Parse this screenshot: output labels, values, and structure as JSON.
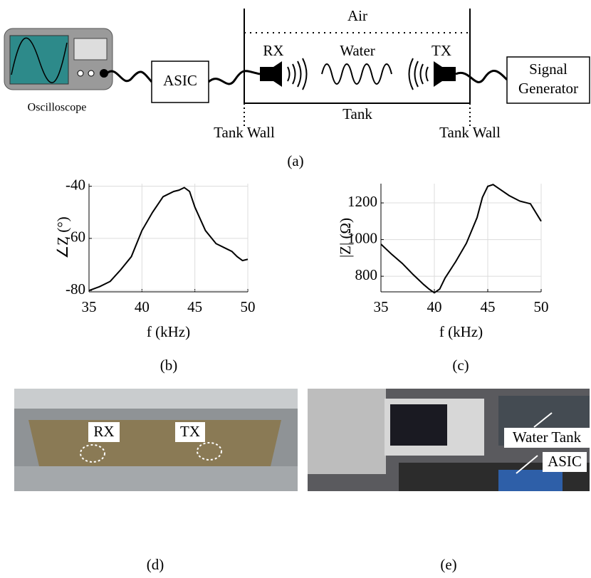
{
  "diagram": {
    "oscilloscope": "Oscilloscope",
    "asic": "ASIC",
    "air": "Air",
    "rx": "RX",
    "water": "Water",
    "tx": "TX",
    "tank": "Tank",
    "tank_wall_left": "Tank Wall",
    "tank_wall_right": "Tank Wall",
    "signal_generator": [
      "Signal",
      "Generator"
    ]
  },
  "chart_data": [
    {
      "type": "line",
      "ylabel": "∠Z (°)",
      "xlabel": "f (kHz)",
      "color": "#000000",
      "grid": true,
      "x": [
        35,
        36,
        37,
        38,
        39,
        40,
        41,
        42,
        43,
        43.5,
        44,
        44.5,
        45,
        46,
        47,
        48,
        48.5,
        49,
        49.5,
        50
      ],
      "values": [
        -80,
        -78.5,
        -76.5,
        -72,
        -67,
        -57,
        -50,
        -44,
        -42,
        -41.5,
        -40.5,
        -42,
        -48,
        -57,
        -62,
        -64,
        -65,
        -67,
        -68.5,
        -68
      ],
      "xlim": [
        35,
        50
      ],
      "xticks": [
        35,
        40,
        45,
        50
      ],
      "ylim": [
        -80.5,
        -39
      ],
      "yticks": [
        -80,
        -60,
        -40
      ]
    },
    {
      "type": "line",
      "ylabel": "|Z| (Ω)",
      "xlabel": "f (kHz)",
      "color": "#000000",
      "grid": true,
      "x": [
        35,
        36,
        37,
        38,
        39,
        39.5,
        40,
        40.5,
        41,
        42,
        43,
        44,
        44.5,
        45,
        45.5,
        46,
        47,
        48,
        49,
        50
      ],
      "values": [
        975,
        920,
        870,
        810,
        755,
        730,
        710,
        730,
        790,
        880,
        980,
        1120,
        1230,
        1290,
        1300,
        1280,
        1240,
        1210,
        1195,
        1100
      ],
      "xlim": [
        35,
        50
      ],
      "xticks": [
        35,
        40,
        45,
        50
      ],
      "ylim": [
        715,
        1305
      ],
      "yticks": [
        800,
        1000,
        1200
      ]
    }
  ],
  "photos": {
    "d": [
      "RX",
      "TX"
    ],
    "e": [
      "Water Tank",
      "ASIC"
    ]
  },
  "captions": [
    "(a)",
    "(b)",
    "(c)",
    "(d)",
    "(e)"
  ]
}
